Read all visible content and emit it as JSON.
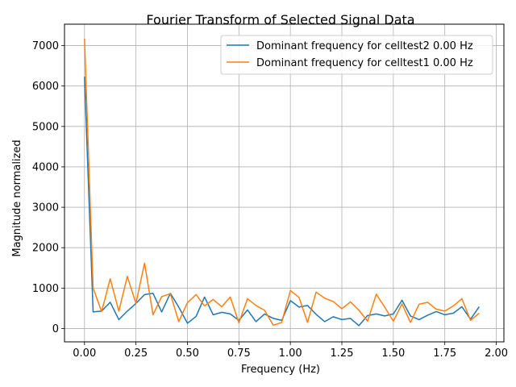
{
  "chart_data": {
    "type": "line",
    "title": "Fourier Transform of Selected Signal Data",
    "xlabel": "Frequency (Hz)",
    "ylabel": "Magnitude normalized",
    "xlim": [
      -0.097,
      2.037
    ],
    "ylim": [
      -330,
      7530
    ],
    "x_ticks": [
      0.0,
      0.25,
      0.5,
      0.75,
      1.0,
      1.25,
      1.5,
      1.75,
      2.0
    ],
    "x_tick_labels": [
      "0.00",
      "0.25",
      "0.50",
      "0.75",
      "1.00",
      "1.25",
      "1.50",
      "1.75",
      "2.00"
    ],
    "y_ticks": [
      0,
      1000,
      2000,
      3000,
      4000,
      5000,
      6000,
      7000
    ],
    "y_tick_labels": [
      "0",
      "1000",
      "2000",
      "3000",
      "4000",
      "5000",
      "6000",
      "7000"
    ],
    "grid": true,
    "legend_position": "top-right",
    "x": [
      0.0,
      0.042,
      0.083,
      0.125,
      0.167,
      0.208,
      0.25,
      0.292,
      0.333,
      0.375,
      0.417,
      0.458,
      0.5,
      0.542,
      0.583,
      0.625,
      0.667,
      0.708,
      0.75,
      0.792,
      0.833,
      0.875,
      0.917,
      0.958,
      1.0,
      1.042,
      1.083,
      1.125,
      1.167,
      1.208,
      1.25,
      1.292,
      1.333,
      1.375,
      1.417,
      1.458,
      1.5,
      1.542,
      1.583,
      1.625,
      1.667,
      1.708,
      1.75,
      1.792,
      1.833,
      1.875,
      1.917
    ],
    "series": [
      {
        "name": "Dominant frequency for celltest2 0.00 Hz",
        "color": "#1f77b4",
        "values": [
          6230,
          410,
          430,
          650,
          220,
          430,
          620,
          840,
          870,
          410,
          870,
          530,
          130,
          300,
          780,
          340,
          400,
          360,
          200,
          460,
          170,
          360,
          250,
          200,
          690,
          530,
          570,
          350,
          170,
          290,
          220,
          250,
          70,
          320,
          360,
          310,
          360,
          700,
          310,
          220,
          330,
          420,
          340,
          380,
          540,
          230,
          540
        ]
      },
      {
        "name": "Dominant frequency for celltest1 0.00 Hz",
        "color": "#ff7f0e",
        "values": [
          7170,
          1000,
          420,
          1230,
          430,
          1290,
          620,
          1620,
          340,
          790,
          860,
          170,
          640,
          840,
          560,
          720,
          540,
          780,
          140,
          740,
          570,
          450,
          80,
          150,
          940,
          770,
          150,
          900,
          750,
          670,
          490,
          660,
          450,
          180,
          850,
          530,
          180,
          610,
          150,
          600,
          650,
          480,
          430,
          560,
          740,
          200,
          380
        ]
      }
    ]
  }
}
